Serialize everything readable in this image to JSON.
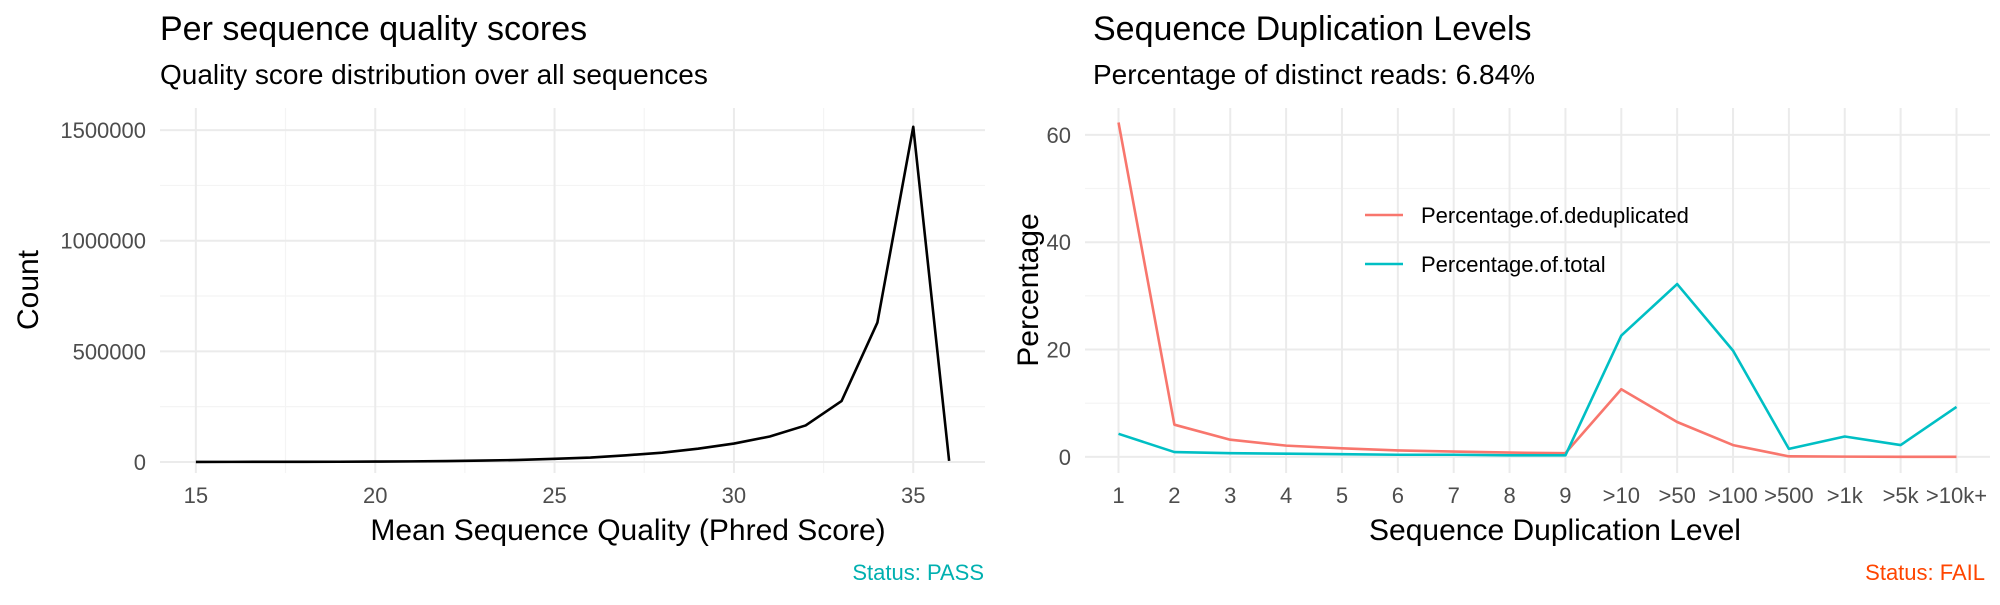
{
  "chart_data": [
    {
      "type": "line",
      "title": "Per sequence quality scores",
      "subtitle": "Quality score distribution over all sequences",
      "xlabel": "Mean Sequence Quality (Phred Score)",
      "ylabel": "Count",
      "xlim": [
        14,
        37
      ],
      "ylim": [
        -50000,
        1600000
      ],
      "xticks": [
        15,
        20,
        25,
        30,
        35
      ],
      "yticks": [
        0,
        500000,
        1000000,
        1500000
      ],
      "ytick_labels": [
        "0",
        "500000",
        "1000000",
        "1500000"
      ],
      "series": [
        {
          "color": "#000000",
          "x": [
            15,
            16,
            17,
            18,
            19,
            20,
            21,
            22,
            23,
            24,
            25,
            26,
            27,
            28,
            29,
            30,
            31,
            32,
            33,
            34,
            35,
            36
          ],
          "y": [
            200,
            300,
            400,
            600,
            900,
            1500,
            2500,
            4000,
            6000,
            9000,
            14000,
            20000,
            30000,
            42000,
            60000,
            83000,
            115000,
            165000,
            275000,
            630000,
            1515000,
            5000
          ]
        }
      ],
      "grid": true,
      "status": {
        "text": "Status: PASS",
        "color": "#00b0b0"
      }
    },
    {
      "type": "line",
      "title": "Sequence Duplication Levels",
      "subtitle": "Percentage of distinct reads: 6.84%",
      "xlabel": "Sequence Duplication Level",
      "ylabel": "Percentage",
      "categories": [
        "1",
        "2",
        "3",
        "4",
        "5",
        "6",
        "7",
        "8",
        "9",
        ">10",
        ">50",
        ">100",
        ">500",
        ">1k",
        ">5k",
        ">10k+"
      ],
      "ylim": [
        -3,
        65
      ],
      "yticks": [
        0,
        20,
        40,
        60
      ],
      "series": [
        {
          "name": "Percentage.of.deduplicated",
          "color": "#f8766d",
          "values": [
            62.3,
            6.0,
            3.2,
            2.1,
            1.6,
            1.2,
            1.0,
            0.8,
            0.7,
            12.6,
            6.5,
            2.2,
            0.1,
            0.05,
            0.02,
            0.01
          ]
        },
        {
          "name": "Percentage.of.total",
          "color": "#00bfc4",
          "values": [
            4.3,
            0.9,
            0.7,
            0.6,
            0.5,
            0.4,
            0.4,
            0.3,
            0.3,
            22.6,
            32.2,
            19.8,
            1.5,
            3.8,
            2.2,
            9.3
          ]
        }
      ],
      "legend": "inside-top-center",
      "grid": true,
      "status": {
        "text": "Status: FAIL",
        "color": "#ff4500"
      }
    }
  ]
}
